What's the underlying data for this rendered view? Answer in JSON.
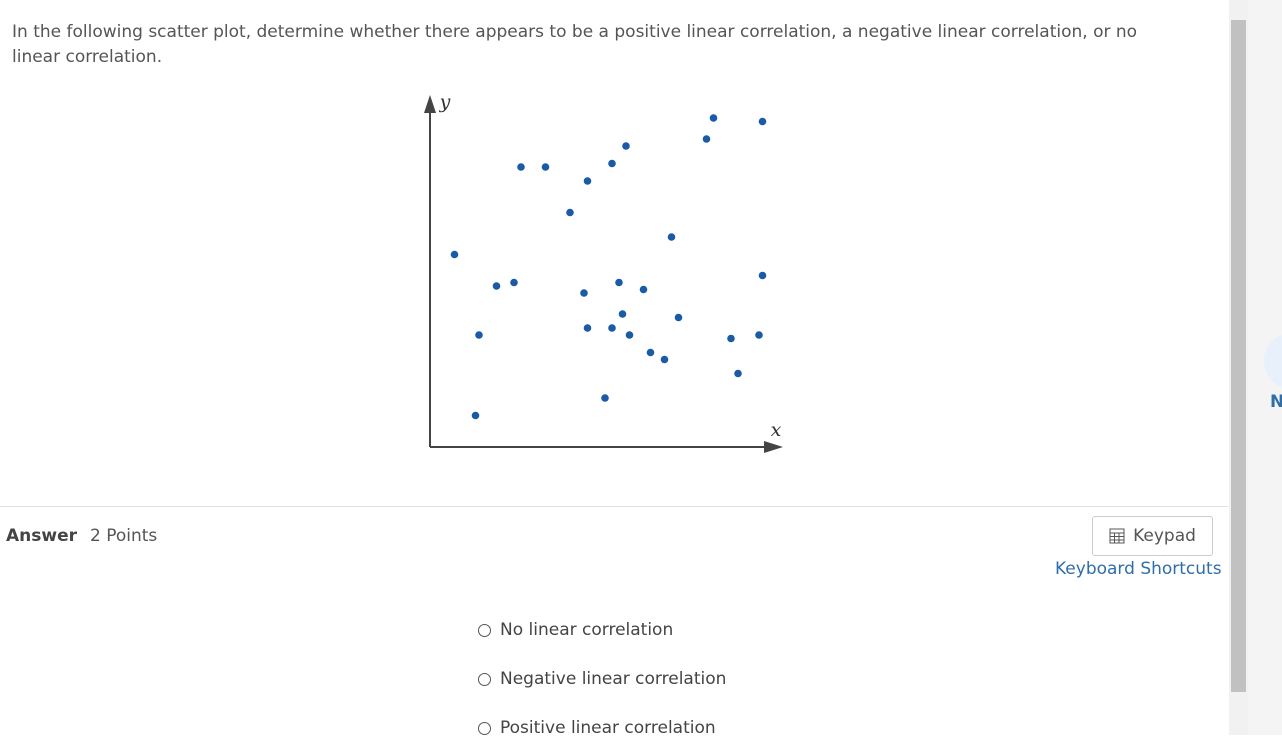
{
  "question": "In the following scatter plot, determine whether there appears to be a positive linear correlation, a negative linear correlation, or no linear correlation.",
  "chart_data": {
    "type": "scatter",
    "xlabel": "x",
    "ylabel": "y",
    "xlim": [
      0,
      100
    ],
    "ylim": [
      0,
      100
    ],
    "color": "#1a5aa6",
    "x": [
      7,
      14,
      13,
      19,
      24,
      26,
      33,
      40,
      45,
      52,
      56,
      44,
      45,
      52,
      54,
      55,
      57,
      61,
      63,
      67,
      69,
      71,
      50,
      79,
      81,
      95,
      95,
      86,
      94,
      88
    ],
    "y": [
      55,
      32,
      9,
      46,
      47,
      80,
      80,
      67,
      76,
      81,
      86,
      44,
      34,
      34,
      47,
      38,
      32,
      45,
      27,
      25,
      60,
      37,
      14,
      88,
      94,
      93,
      49,
      31,
      32,
      21
    ]
  },
  "answer": {
    "label": "Answer",
    "points": "2 Points"
  },
  "keypad": "Keypad",
  "shortcuts": "Keyboard Shortcuts",
  "options": [
    "No linear correlation",
    "Negative linear correlation",
    "Positive linear correlation"
  ],
  "side_label": "N"
}
